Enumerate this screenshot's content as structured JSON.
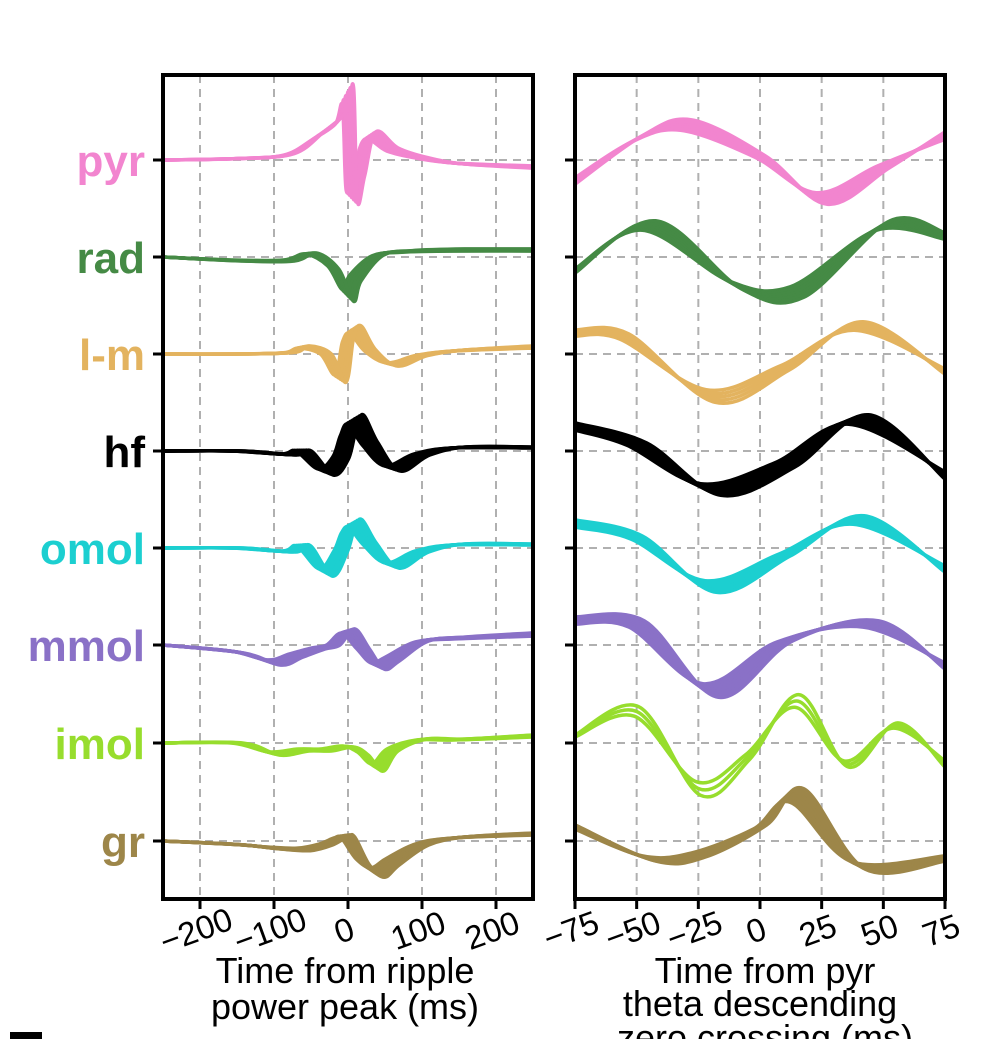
{
  "chart_data": [
    {
      "type": "line",
      "xlabel_lines": [
        "Time from ripple",
        "power peak (ms)"
      ],
      "xlim": [
        -250,
        250
      ],
      "xticks": [
        -200,
        -100,
        0,
        100,
        200
      ],
      "xtick_labels": [
        "−200",
        "−100",
        "0",
        "100",
        "200"
      ],
      "grid": true,
      "grid_style": "dashed",
      "row_labels": [
        {
          "label": "pyr",
          "color": "#f285cf"
        },
        {
          "label": "rad",
          "color": "#458a45"
        },
        {
          "label": "l-m",
          "color": "#e3b35f"
        },
        {
          "label": "hf",
          "color": "#000000"
        },
        {
          "label": "omol",
          "color": "#1ccfd0"
        },
        {
          "label": "mmol",
          "color": "#8a71c7"
        },
        {
          "label": "imol",
          "color": "#97dd2d"
        },
        {
          "label": "gr",
          "color": "#9d8649"
        }
      ],
      "series": [
        {
          "row": 0,
          "color": "#f285cf",
          "n_traces": 6,
          "x": [
            -250,
            -150,
            -80,
            -40,
            -10,
            0,
            5,
            15,
            30,
            60,
            100,
            150,
            250
          ],
          "y": [
            0,
            0.02,
            0.08,
            0.35,
            0.6,
            0.9,
            -0.5,
            -0.2,
            0.35,
            0.15,
            0.03,
            -0.05,
            -0.1
          ]
        },
        {
          "row": 1,
          "color": "#458a45",
          "n_traces": 6,
          "x": [
            -250,
            -150,
            -80,
            -50,
            -20,
            0,
            10,
            40,
            80,
            150,
            250
          ],
          "y": [
            0,
            -0.05,
            -0.05,
            0.05,
            -0.15,
            -0.55,
            -0.3,
            0.02,
            0.08,
            0.1,
            0.1
          ]
        },
        {
          "row": 2,
          "color": "#e3b35f",
          "n_traces": 6,
          "x": [
            -250,
            -150,
            -80,
            -60,
            -30,
            -10,
            0,
            10,
            30,
            60,
            100,
            150,
            250
          ],
          "y": [
            0,
            0,
            0.02,
            0.1,
            0,
            -0.35,
            0.2,
            0.35,
            0.05,
            -0.15,
            -0.02,
            0.05,
            0.1
          ]
        },
        {
          "row": 3,
          "color": "#000000",
          "n_traces": 8,
          "x": [
            -250,
            -150,
            -80,
            -60,
            -30,
            -10,
            0,
            10,
            30,
            60,
            100,
            150,
            250
          ],
          "y": [
            0,
            0,
            -0.05,
            0,
            -0.3,
            -0.1,
            0.25,
            0.45,
            0.1,
            -0.25,
            -0.05,
            0.05,
            0.05
          ]
        },
        {
          "row": 4,
          "color": "#1ccfd0",
          "n_traces": 7,
          "x": [
            -250,
            -150,
            -80,
            -60,
            -30,
            -10,
            0,
            10,
            30,
            60,
            100,
            150,
            250
          ],
          "y": [
            0,
            0,
            -0.05,
            0.03,
            -0.35,
            -0.05,
            0.25,
            0.35,
            0.05,
            -0.25,
            -0.05,
            0.05,
            0.05
          ]
        },
        {
          "row": 5,
          "color": "#8a71c7",
          "n_traces": 7,
          "x": [
            -250,
            -150,
            -100,
            -70,
            -40,
            -20,
            0,
            20,
            40,
            60,
            100,
            150,
            250
          ],
          "y": [
            0,
            -0.1,
            -0.25,
            -0.15,
            -0.05,
            0,
            0.2,
            -0.05,
            -0.3,
            -0.2,
            0.05,
            0.1,
            0.15
          ]
        },
        {
          "row": 6,
          "color": "#97dd2d",
          "n_traces": 6,
          "x": [
            -250,
            -150,
            -100,
            -60,
            -30,
            0,
            20,
            40,
            60,
            100,
            150,
            250
          ],
          "y": [
            0,
            0,
            -0.15,
            -0.1,
            -0.1,
            -0.05,
            -0.15,
            -0.35,
            -0.1,
            0.05,
            0.05,
            0.1
          ]
        },
        {
          "row": 7,
          "color": "#9d8649",
          "n_traces": 7,
          "x": [
            -250,
            -150,
            -100,
            -60,
            -30,
            -10,
            0,
            20,
            40,
            60,
            100,
            150,
            250
          ],
          "y": [
            0,
            -0.05,
            -0.1,
            -0.12,
            -0.05,
            0.05,
            0.05,
            -0.3,
            -0.45,
            -0.3,
            -0.05,
            0.05,
            0.1
          ]
        }
      ]
    },
    {
      "type": "line",
      "xlabel_lines": [
        "Time from pyr",
        "theta descending",
        "zero crossing (ms)"
      ],
      "xlim": [
        -75,
        75
      ],
      "xticks": [
        -75,
        -50,
        -25,
        0,
        25,
        50,
        75
      ],
      "xtick_labels": [
        "−75",
        "−50",
        "−25",
        "0",
        "25",
        "50",
        "75"
      ],
      "grid": true,
      "grid_style": "dashed",
      "series": [
        {
          "row": 0,
          "color": "#f285cf",
          "n_traces": 6,
          "x": [
            -75,
            -50,
            -30,
            0,
            25,
            50,
            75
          ],
          "y": [
            -0.3,
            0.3,
            0.5,
            0.05,
            -0.55,
            -0.1,
            0.35
          ]
        },
        {
          "row": 1,
          "color": "#458a45",
          "n_traces": 7,
          "x": [
            -75,
            -45,
            -10,
            15,
            50,
            75
          ],
          "y": [
            -0.2,
            0.45,
            -0.4,
            -0.5,
            0.45,
            0.3
          ]
        },
        {
          "row": 2,
          "color": "#e3b35f",
          "n_traces": 5,
          "x": [
            -75,
            -55,
            -20,
            10,
            40,
            75
          ],
          "y": [
            0.3,
            0.25,
            -0.6,
            -0.2,
            0.4,
            -0.25
          ]
        },
        {
          "row": 3,
          "color": "#000000",
          "n_traces": 10,
          "x": [
            -75,
            -50,
            -20,
            10,
            40,
            75
          ],
          "y": [
            0.35,
            0.1,
            -0.55,
            -0.2,
            0.45,
            -0.35
          ]
        },
        {
          "row": 4,
          "color": "#1ccfd0",
          "n_traces": 6,
          "x": [
            -75,
            -50,
            -20,
            10,
            40,
            75
          ],
          "y": [
            0.35,
            0.15,
            -0.55,
            -0.1,
            0.4,
            -0.3
          ]
        },
        {
          "row": 5,
          "color": "#8a71c7",
          "n_traces": 8,
          "x": [
            -75,
            -50,
            -20,
            10,
            45,
            75
          ],
          "y": [
            0.35,
            0.3,
            -0.65,
            0.05,
            0.3,
            -0.3
          ]
        },
        {
          "row": 6,
          "color": "#97dd2d",
          "n_traces": 3,
          "x": [
            -75,
            -50,
            -25,
            -5,
            15,
            35,
            55,
            75
          ],
          "y": [
            0.1,
            0.45,
            -0.65,
            -0.2,
            0.6,
            -0.3,
            0.25,
            -0.3
          ]
        },
        {
          "row": 7,
          "color": "#9d8649",
          "n_traces": 7,
          "x": [
            -75,
            -45,
            -25,
            0,
            15,
            40,
            75
          ],
          "y": [
            0.2,
            -0.25,
            -0.2,
            0.2,
            0.65,
            -0.35,
            -0.25
          ]
        }
      ]
    }
  ]
}
